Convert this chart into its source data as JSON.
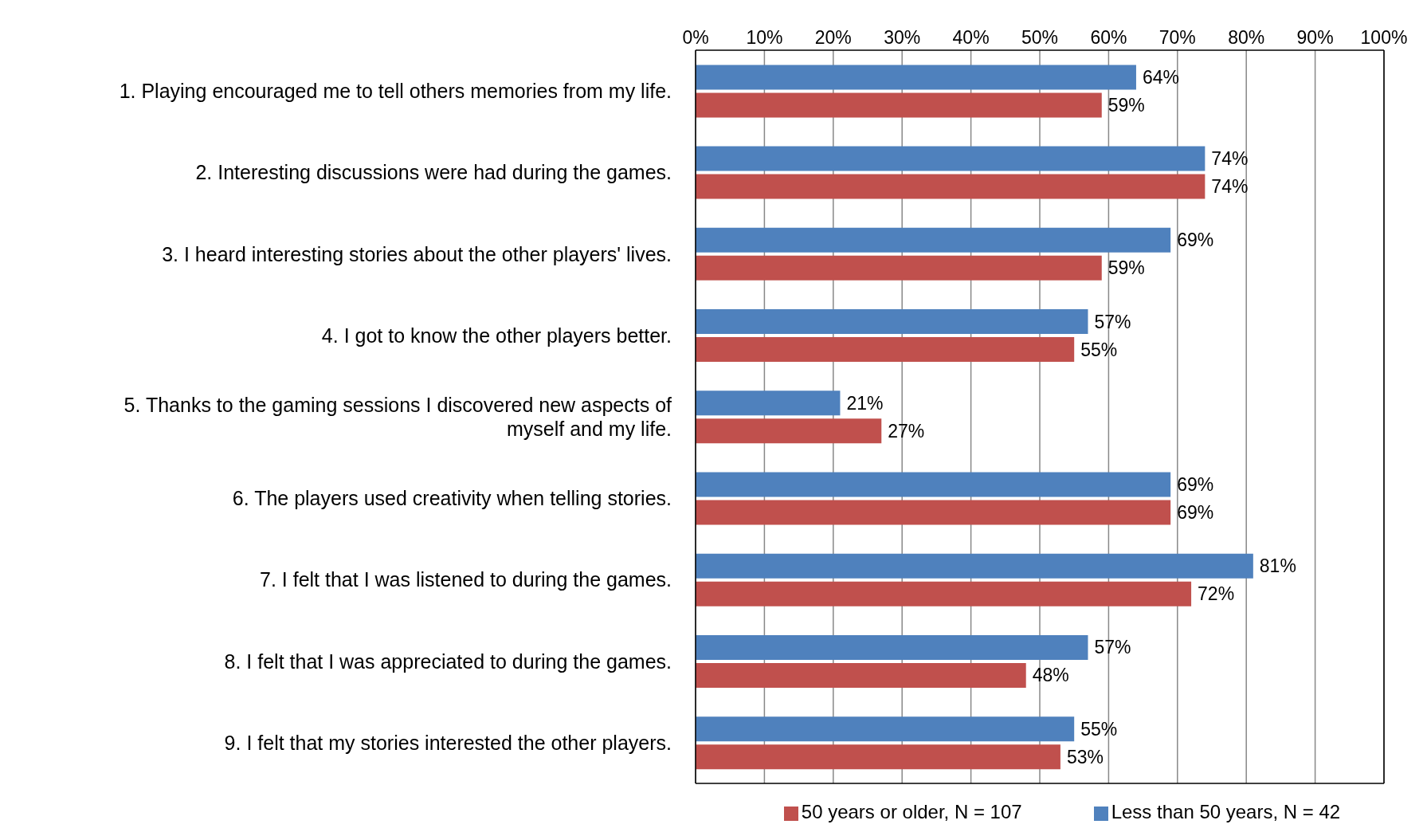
{
  "chart_data": {
    "type": "bar",
    "orientation": "horizontal",
    "categories": [
      "1. Playing encouraged me to tell others memories from my life.",
      "2. Interesting discussions were had during the games.",
      "3. I heard interesting stories about the other players' lives.",
      "4. I got to know the other players better.",
      "5. Thanks to the gaming sessions I discovered new aspects of myself and my life.",
      "6. The players used creativity when telling stories.",
      "7. I felt that I was listened to during the games.",
      "8. I felt that I was appreciated to during the games.",
      "9. I felt that my stories interested the other players."
    ],
    "series": [
      {
        "name": "Less than 50 years, N = 42",
        "color": "#4f81bd",
        "values": [
          64,
          74,
          69,
          57,
          21,
          69,
          81,
          57,
          55
        ],
        "value_labels": [
          "64%",
          "74%",
          "69%",
          "57%",
          "21%",
          "69%",
          "81%",
          "57%",
          "55%"
        ]
      },
      {
        "name": "50 years or older, N = 107",
        "color": "#c0504d",
        "values": [
          59,
          74,
          59,
          55,
          27,
          69,
          72,
          48,
          53
        ],
        "value_labels": [
          "59%",
          "74%",
          "59%",
          "55%",
          "27%",
          "69%",
          "72%",
          "48%",
          "53%"
        ]
      }
    ],
    "xlim": [
      0,
      100
    ],
    "xticks": [
      {
        "value": 0,
        "label": "0%"
      },
      {
        "value": 10,
        "label": "10%"
      },
      {
        "value": 20,
        "label": "20%"
      },
      {
        "value": 30,
        "label": "30%"
      },
      {
        "value": 40,
        "label": "40%"
      },
      {
        "value": 50,
        "label": "50%"
      },
      {
        "value": 60,
        "label": "60%"
      },
      {
        "value": 70,
        "label": "70%"
      },
      {
        "value": 80,
        "label": "80%"
      },
      {
        "value": 90,
        "label": "90%"
      },
      {
        "value": 100,
        "label": "100%"
      }
    ],
    "grid": "x",
    "legend": "bottom"
  }
}
